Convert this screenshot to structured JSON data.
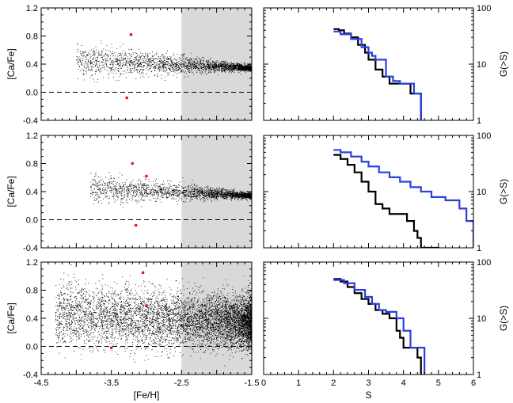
{
  "chart_data": [
    {
      "panel": "top-left",
      "type": "scatter",
      "xlabel": "",
      "ylabel": "[Ca/Fe]",
      "xlim": [
        -4.5,
        -1.5
      ],
      "ylim": [
        -0.4,
        1.2
      ],
      "xticks": [],
      "yticks": [
        "-0.4",
        "0.0",
        "0.4",
        "0.8",
        "1.2"
      ],
      "shaded_region": [
        -2.5,
        -1.5
      ],
      "shade_color": "#d9d9d9",
      "dashed_reference_y": 0.0,
      "cloud": {
        "x_start": -4.0,
        "x_end": -1.5,
        "y_trend": [
          [
            -4.0,
            0.44
          ],
          [
            -3.0,
            0.41
          ],
          [
            -2.5,
            0.39
          ],
          [
            -1.5,
            0.34
          ]
        ],
        "scatter_low": 0.12,
        "scatter_high": 0.02,
        "count": 2600
      },
      "highlight_points": [
        {
          "x": -3.22,
          "y": 0.82
        },
        {
          "x": -3.28,
          "y": -0.08
        }
      ],
      "highlight_color": "#ee1111"
    },
    {
      "panel": "middle-left",
      "type": "scatter",
      "xlabel": "",
      "ylabel": "[Ca/Fe]",
      "xlim": [
        -4.5,
        -1.5
      ],
      "ylim": [
        -0.4,
        1.2
      ],
      "xticks": [],
      "yticks": [
        "-0.4",
        "0.0",
        "0.4",
        "0.8",
        "1.2"
      ],
      "shaded_region": [
        -2.5,
        -1.5
      ],
      "shade_color": "#d9d9d9",
      "dashed_reference_y": 0.0,
      "cloud": {
        "x_start": -3.8,
        "x_end": -1.5,
        "y_trend": [
          [
            -3.8,
            0.45
          ],
          [
            -3.0,
            0.41
          ],
          [
            -2.5,
            0.39
          ],
          [
            -1.5,
            0.34
          ]
        ],
        "scatter_low": 0.1,
        "scatter_high": 0.02,
        "count": 2400
      },
      "highlight_points": [
        {
          "x": -3.2,
          "y": 0.8
        },
        {
          "x": -3.0,
          "y": 0.62
        },
        {
          "x": -3.15,
          "y": -0.08
        }
      ],
      "highlight_color": "#ee1111"
    },
    {
      "panel": "bottom-left",
      "type": "scatter",
      "xlabel": "[Fe/H]",
      "ylabel": "[Ca/Fe]",
      "xlim": [
        -4.5,
        -1.5
      ],
      "ylim": [
        -0.4,
        1.2
      ],
      "xticks": [
        "-4.5",
        "-3.5",
        "-2.5",
        "-1.5"
      ],
      "yticks": [
        "-0.4",
        "0.0",
        "0.4",
        "0.8",
        "1.2"
      ],
      "shaded_region": [
        -2.5,
        -1.5
      ],
      "shade_color": "#d9d9d9",
      "dashed_reference_y": 0.0,
      "cloud": {
        "x_start": -4.3,
        "x_end": -1.5,
        "y_trend": [
          [
            -4.3,
            0.45
          ],
          [
            -3.0,
            0.4
          ],
          [
            -2.5,
            0.38
          ],
          [
            -1.5,
            0.34
          ]
        ],
        "scatter_low": 0.22,
        "scatter_high": 0.18,
        "count": 7000
      },
      "highlight_points": [
        {
          "x": -3.05,
          "y": 1.05
        },
        {
          "x": -3.0,
          "y": 0.58
        },
        {
          "x": -3.5,
          "y": -0.02
        }
      ],
      "highlight_color": "#ee1111"
    },
    {
      "panel": "top-right",
      "type": "line",
      "xlabel": "",
      "ylabel": "G(>S)",
      "xlim": [
        0,
        6
      ],
      "ylim": [
        1,
        100
      ],
      "y_scale": "log",
      "xticks": [],
      "yticks": [
        "1",
        "10",
        "100"
      ],
      "series": [
        {
          "color": "#000000",
          "steps": [
            [
              2.0,
              42
            ],
            [
              2.15,
              40
            ],
            [
              2.3,
              35
            ],
            [
              2.5,
              30
            ],
            [
              2.7,
              22
            ],
            [
              2.9,
              16
            ],
            [
              3.0,
              12
            ],
            [
              3.2,
              8
            ],
            [
              3.4,
              6
            ],
            [
              3.6,
              4.5
            ],
            [
              3.8,
              4.5
            ],
            [
              4.0,
              4.5
            ],
            [
              4.2,
              3
            ],
            [
              4.5,
              3
            ]
          ]
        },
        {
          "color": "#2b3fe0",
          "steps": [
            [
              2.0,
              38
            ],
            [
              2.2,
              34
            ],
            [
              2.5,
              28
            ],
            [
              2.8,
              20
            ],
            [
              3.0,
              16
            ],
            [
              3.1,
              14
            ],
            [
              3.2,
              12
            ],
            [
              3.5,
              6
            ],
            [
              3.7,
              5
            ],
            [
              3.9,
              4.5
            ],
            [
              4.2,
              4.5
            ],
            [
              4.3,
              3
            ],
            [
              4.45,
              3
            ],
            [
              4.5,
              1
            ]
          ]
        }
      ]
    },
    {
      "panel": "middle-right",
      "type": "line",
      "xlabel": "",
      "ylabel": "G(>S)",
      "xlim": [
        0,
        6
      ],
      "ylim": [
        1,
        100
      ],
      "y_scale": "log",
      "xticks": [],
      "yticks": [
        "1",
        "10",
        "100"
      ],
      "series": [
        {
          "color": "#000000",
          "steps": [
            [
              2.0,
              45
            ],
            [
              2.2,
              38
            ],
            [
              2.4,
              30
            ],
            [
              2.6,
              22
            ],
            [
              2.8,
              15
            ],
            [
              3.0,
              10
            ],
            [
              3.2,
              6
            ],
            [
              3.4,
              5
            ],
            [
              3.6,
              4
            ],
            [
              3.9,
              4
            ],
            [
              4.1,
              3
            ],
            [
              4.3,
              2
            ],
            [
              4.4,
              1.5
            ],
            [
              4.5,
              1
            ],
            [
              5.0,
              1
            ]
          ]
        },
        {
          "color": "#2b3fe0",
          "steps": [
            [
              2.0,
              55
            ],
            [
              2.2,
              50
            ],
            [
              2.5,
              42
            ],
            [
              2.8,
              34
            ],
            [
              3.0,
              28
            ],
            [
              3.3,
              22
            ],
            [
              3.6,
              18
            ],
            [
              3.9,
              15
            ],
            [
              4.2,
              12
            ],
            [
              4.5,
              10
            ],
            [
              4.8,
              8
            ],
            [
              5.2,
              7
            ],
            [
              5.6,
              5
            ],
            [
              5.8,
              3
            ],
            [
              6.0,
              2
            ]
          ]
        }
      ]
    },
    {
      "panel": "bottom-right",
      "type": "line",
      "xlabel": "S",
      "ylabel": "G(>S)",
      "xlim": [
        0,
        6
      ],
      "ylim": [
        1,
        100
      ],
      "y_scale": "log",
      "xticks": [
        "0",
        "1",
        "2",
        "3",
        "4",
        "5",
        "6"
      ],
      "yticks": [
        "1",
        "10",
        "100"
      ],
      "series": [
        {
          "color": "#000000",
          "steps": [
            [
              2.0,
              50
            ],
            [
              2.2,
              45
            ],
            [
              2.4,
              36
            ],
            [
              2.6,
              28
            ],
            [
              2.8,
              22
            ],
            [
              3.0,
              18
            ],
            [
              3.2,
              14
            ],
            [
              3.4,
              12
            ],
            [
              3.6,
              10
            ],
            [
              3.8,
              6
            ],
            [
              3.9,
              4.5
            ],
            [
              4.0,
              3
            ],
            [
              4.2,
              3
            ],
            [
              4.4,
              2
            ],
            [
              4.5,
              1
            ]
          ]
        },
        {
          "color": "#2b3fe0",
          "steps": [
            [
              2.0,
              48
            ],
            [
              2.3,
              42
            ],
            [
              2.6,
              32
            ],
            [
              2.9,
              24
            ],
            [
              3.1,
              18
            ],
            [
              3.3,
              14
            ],
            [
              3.5,
              13
            ],
            [
              3.8,
              10
            ],
            [
              4.0,
              6
            ],
            [
              4.2,
              3
            ],
            [
              4.4,
              3
            ],
            [
              4.55,
              3
            ],
            [
              4.6,
              1
            ]
          ]
        }
      ]
    }
  ]
}
